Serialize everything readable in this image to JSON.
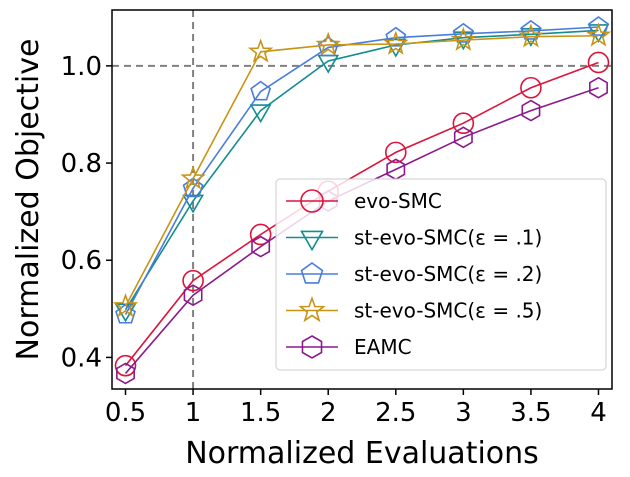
{
  "chart_data": {
    "type": "line",
    "xlabel": "Normalized Evaluations",
    "ylabel": "Normalized Objective",
    "x": [
      0.5,
      1,
      1.5,
      2,
      2.5,
      3,
      3.5,
      4
    ],
    "xtick_labels": [
      "0.5",
      "1",
      "1.5",
      "2",
      "2.5",
      "3",
      "3.5",
      "4"
    ],
    "yticks": [
      0.4,
      0.6,
      0.8,
      1.0
    ],
    "ytick_labels": [
      "0.4",
      "0.6",
      "0.8",
      "1.0"
    ],
    "xlim": [
      0.4,
      4.1
    ],
    "ylim": [
      0.335,
      1.115
    ],
    "reference_lines": {
      "x": 1,
      "y": 1.0,
      "style": "dashed",
      "color": "#808080"
    },
    "legend_position": "center-right",
    "series": [
      {
        "name": "evo-SMC",
        "marker": "circle",
        "color": "#dc143c",
        "values": [
          0.383,
          0.558,
          0.653,
          0.742,
          0.822,
          0.882,
          0.955,
          1.007
        ]
      },
      {
        "name": "st-evo-SMC(ε = .1)",
        "marker": "triangle-down",
        "color": "#138d90",
        "values": [
          0.498,
          0.722,
          0.908,
          1.01,
          1.043,
          1.058,
          1.065,
          1.073
        ]
      },
      {
        "name": "st-evo-SMC(ε = .2)",
        "marker": "pentagon",
        "color": "#4a7ddb",
        "values": [
          0.488,
          0.748,
          0.947,
          1.038,
          1.058,
          1.066,
          1.072,
          1.08
        ]
      },
      {
        "name": "st-evo-SMC(ε = .5)",
        "marker": "star",
        "color": "#c89416",
        "values": [
          0.505,
          0.768,
          1.029,
          1.043,
          1.045,
          1.053,
          1.06,
          1.062
        ]
      },
      {
        "name": "EAMC",
        "marker": "hexagon",
        "color": "#8b1a8b",
        "values": [
          0.367,
          0.528,
          0.628,
          0.722,
          0.787,
          0.853,
          0.908,
          0.955
        ]
      }
    ]
  }
}
